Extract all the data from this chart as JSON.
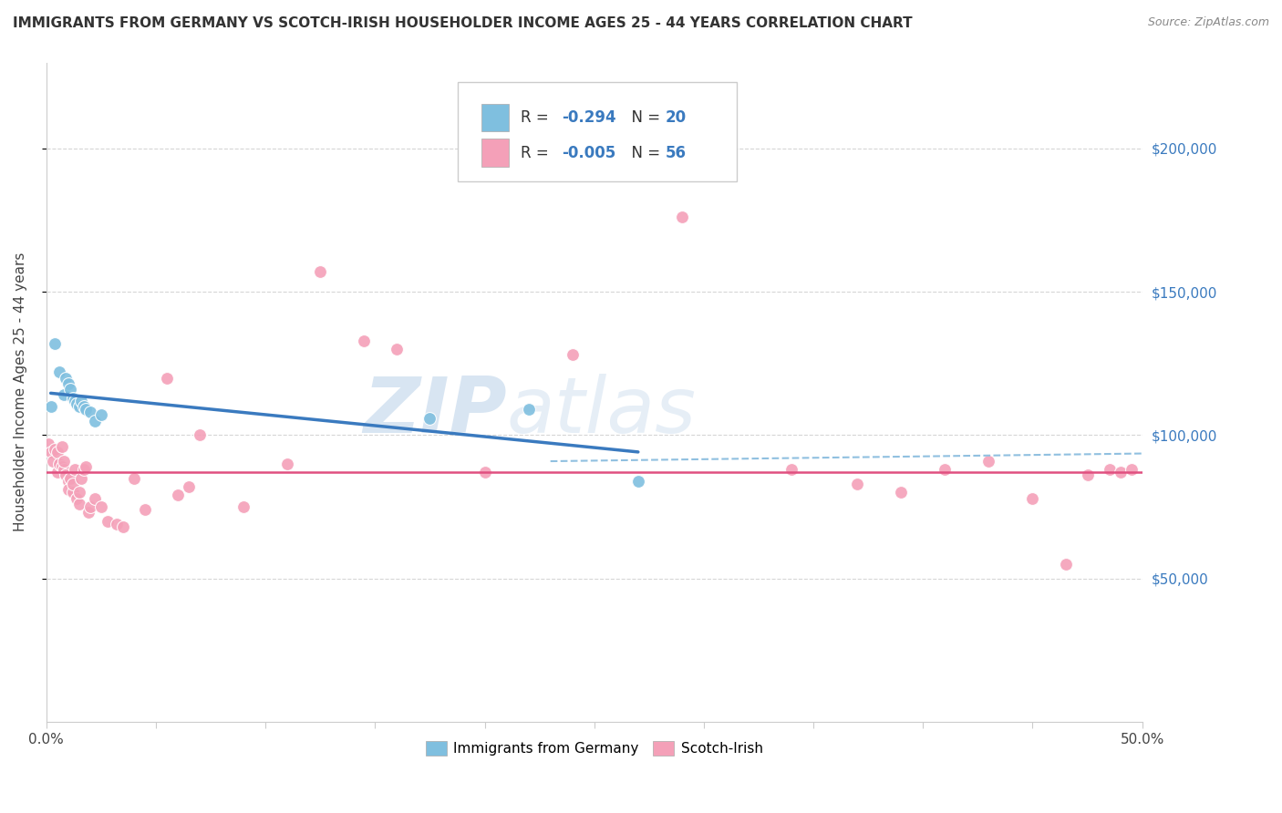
{
  "title": "IMMIGRANTS FROM GERMANY VS SCOTCH-IRISH HOUSEHOLDER INCOME AGES 25 - 44 YEARS CORRELATION CHART",
  "source": "Source: ZipAtlas.com",
  "ylabel": "Householder Income Ages 25 - 44 years",
  "xlim": [
    0.0,
    0.5
  ],
  "ylim": [
    0,
    230000
  ],
  "xtick_pos": [
    0.0,
    0.05,
    0.1,
    0.15,
    0.2,
    0.25,
    0.3,
    0.35,
    0.4,
    0.45,
    0.5
  ],
  "xticklabels": [
    "0.0%",
    "",
    "",
    "",
    "",
    "",
    "",
    "",
    "",
    "",
    "50.0%"
  ],
  "ytick_positions": [
    50000,
    100000,
    150000,
    200000
  ],
  "ytick_labels": [
    "$50,000",
    "$100,000",
    "$150,000",
    "$200,000"
  ],
  "watermark": "ZIPatlas",
  "legend_label1": "Immigrants from Germany",
  "legend_label2": "Scotch-Irish",
  "blue_scatter_color": "#7fbfdf",
  "pink_scatter_color": "#f4a0b8",
  "blue_line_color": "#3a7abf",
  "pink_line_color": "#e05080",
  "pink_hline_color": "#e05080",
  "pink_dashed_color": "#90c0e0",
  "bg_color": "#ffffff",
  "grid_color": "#cccccc",
  "germany_x": [
    0.002,
    0.004,
    0.006,
    0.008,
    0.009,
    0.01,
    0.011,
    0.012,
    0.013,
    0.014,
    0.015,
    0.016,
    0.017,
    0.018,
    0.02,
    0.022,
    0.025,
    0.175,
    0.22,
    0.27
  ],
  "germany_y": [
    110000,
    132000,
    122000,
    114000,
    120000,
    118000,
    116000,
    113000,
    112000,
    111000,
    110000,
    112000,
    110000,
    109000,
    108000,
    105000,
    107000,
    106000,
    109000,
    84000
  ],
  "scotchirish_x": [
    0.001,
    0.002,
    0.003,
    0.004,
    0.005,
    0.005,
    0.006,
    0.007,
    0.007,
    0.008,
    0.008,
    0.009,
    0.01,
    0.01,
    0.011,
    0.012,
    0.012,
    0.013,
    0.014,
    0.015,
    0.015,
    0.016,
    0.017,
    0.018,
    0.019,
    0.02,
    0.022,
    0.025,
    0.028,
    0.032,
    0.035,
    0.04,
    0.045,
    0.055,
    0.06,
    0.065,
    0.07,
    0.09,
    0.11,
    0.125,
    0.145,
    0.16,
    0.2,
    0.24,
    0.29,
    0.34,
    0.37,
    0.39,
    0.41,
    0.43,
    0.45,
    0.465,
    0.475,
    0.485,
    0.49,
    0.495
  ],
  "scotchirish_y": [
    97000,
    94000,
    91000,
    95000,
    87000,
    94000,
    90000,
    89000,
    96000,
    88000,
    91000,
    86000,
    84000,
    81000,
    85000,
    80000,
    83000,
    88000,
    78000,
    76000,
    80000,
    85000,
    88000,
    89000,
    73000,
    75000,
    78000,
    75000,
    70000,
    69000,
    68000,
    85000,
    74000,
    120000,
    79000,
    82000,
    100000,
    75000,
    90000,
    157000,
    133000,
    130000,
    87000,
    128000,
    176000,
    88000,
    83000,
    80000,
    88000,
    91000,
    78000,
    55000,
    86000,
    88000,
    87000,
    88000
  ]
}
